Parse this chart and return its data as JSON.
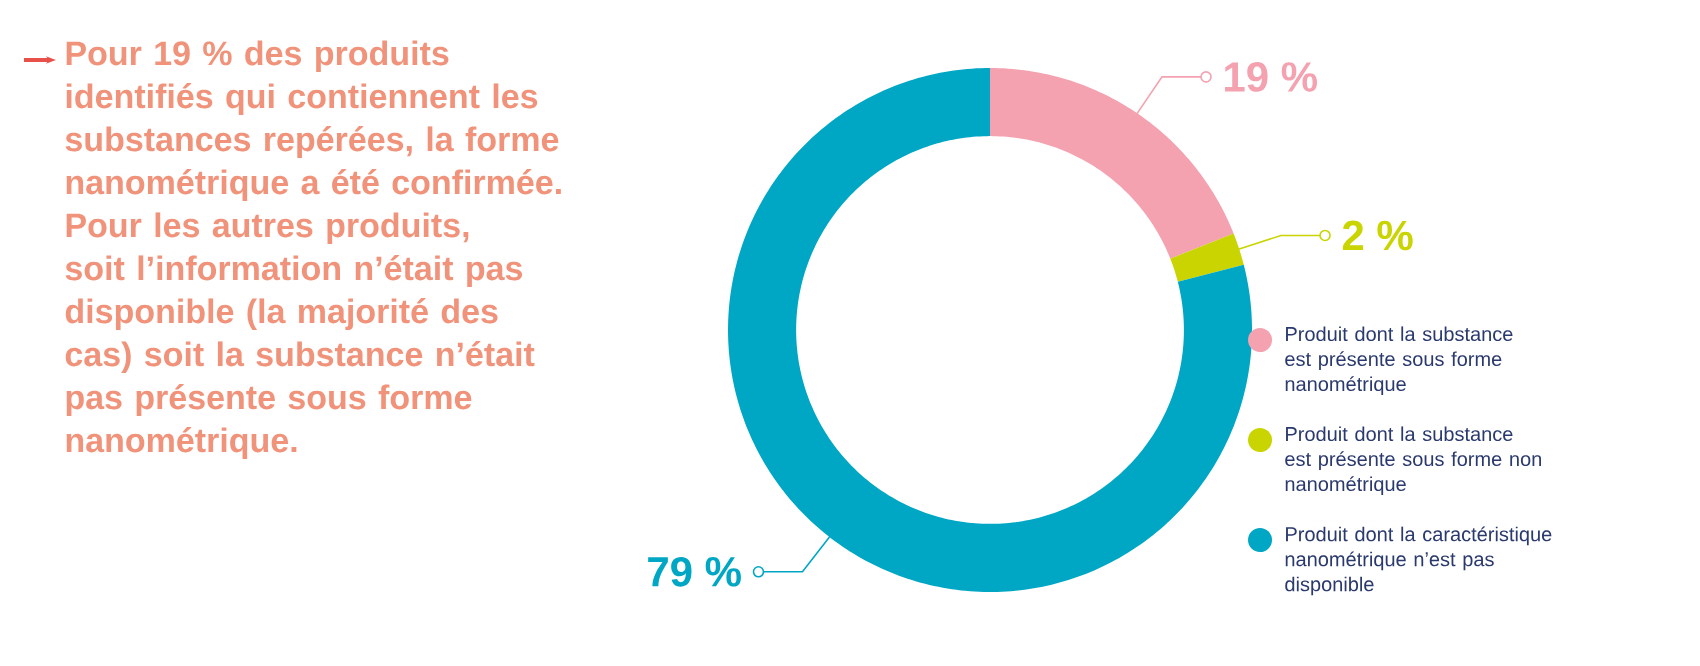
{
  "chart_data": {
    "type": "donut",
    "categories": [
      "Produit dont la substance est présente sous forme nanométrique",
      "Produit dont la substance est présente sous forme non nanométrique",
      "Produit dont la caractéristique nanométrique n’est pas disponible"
    ],
    "values": [
      19,
      2,
      79
    ],
    "colors": [
      "#f4a1b0",
      "#c9d400",
      "#00a7c4"
    ],
    "value_labels": [
      "19 %",
      "2 %",
      "79 %"
    ],
    "legend": "right",
    "annotations": [
      "Pour 19 % des produits identifiés qui contiennent les substances repérées, la forme nanométrique a été confirmée. Pour les autres produits, soit l’information n’était pas disponible (la majorité des cas) soit la substance n’était pas présente sous forme nanométrique."
    ]
  }
}
